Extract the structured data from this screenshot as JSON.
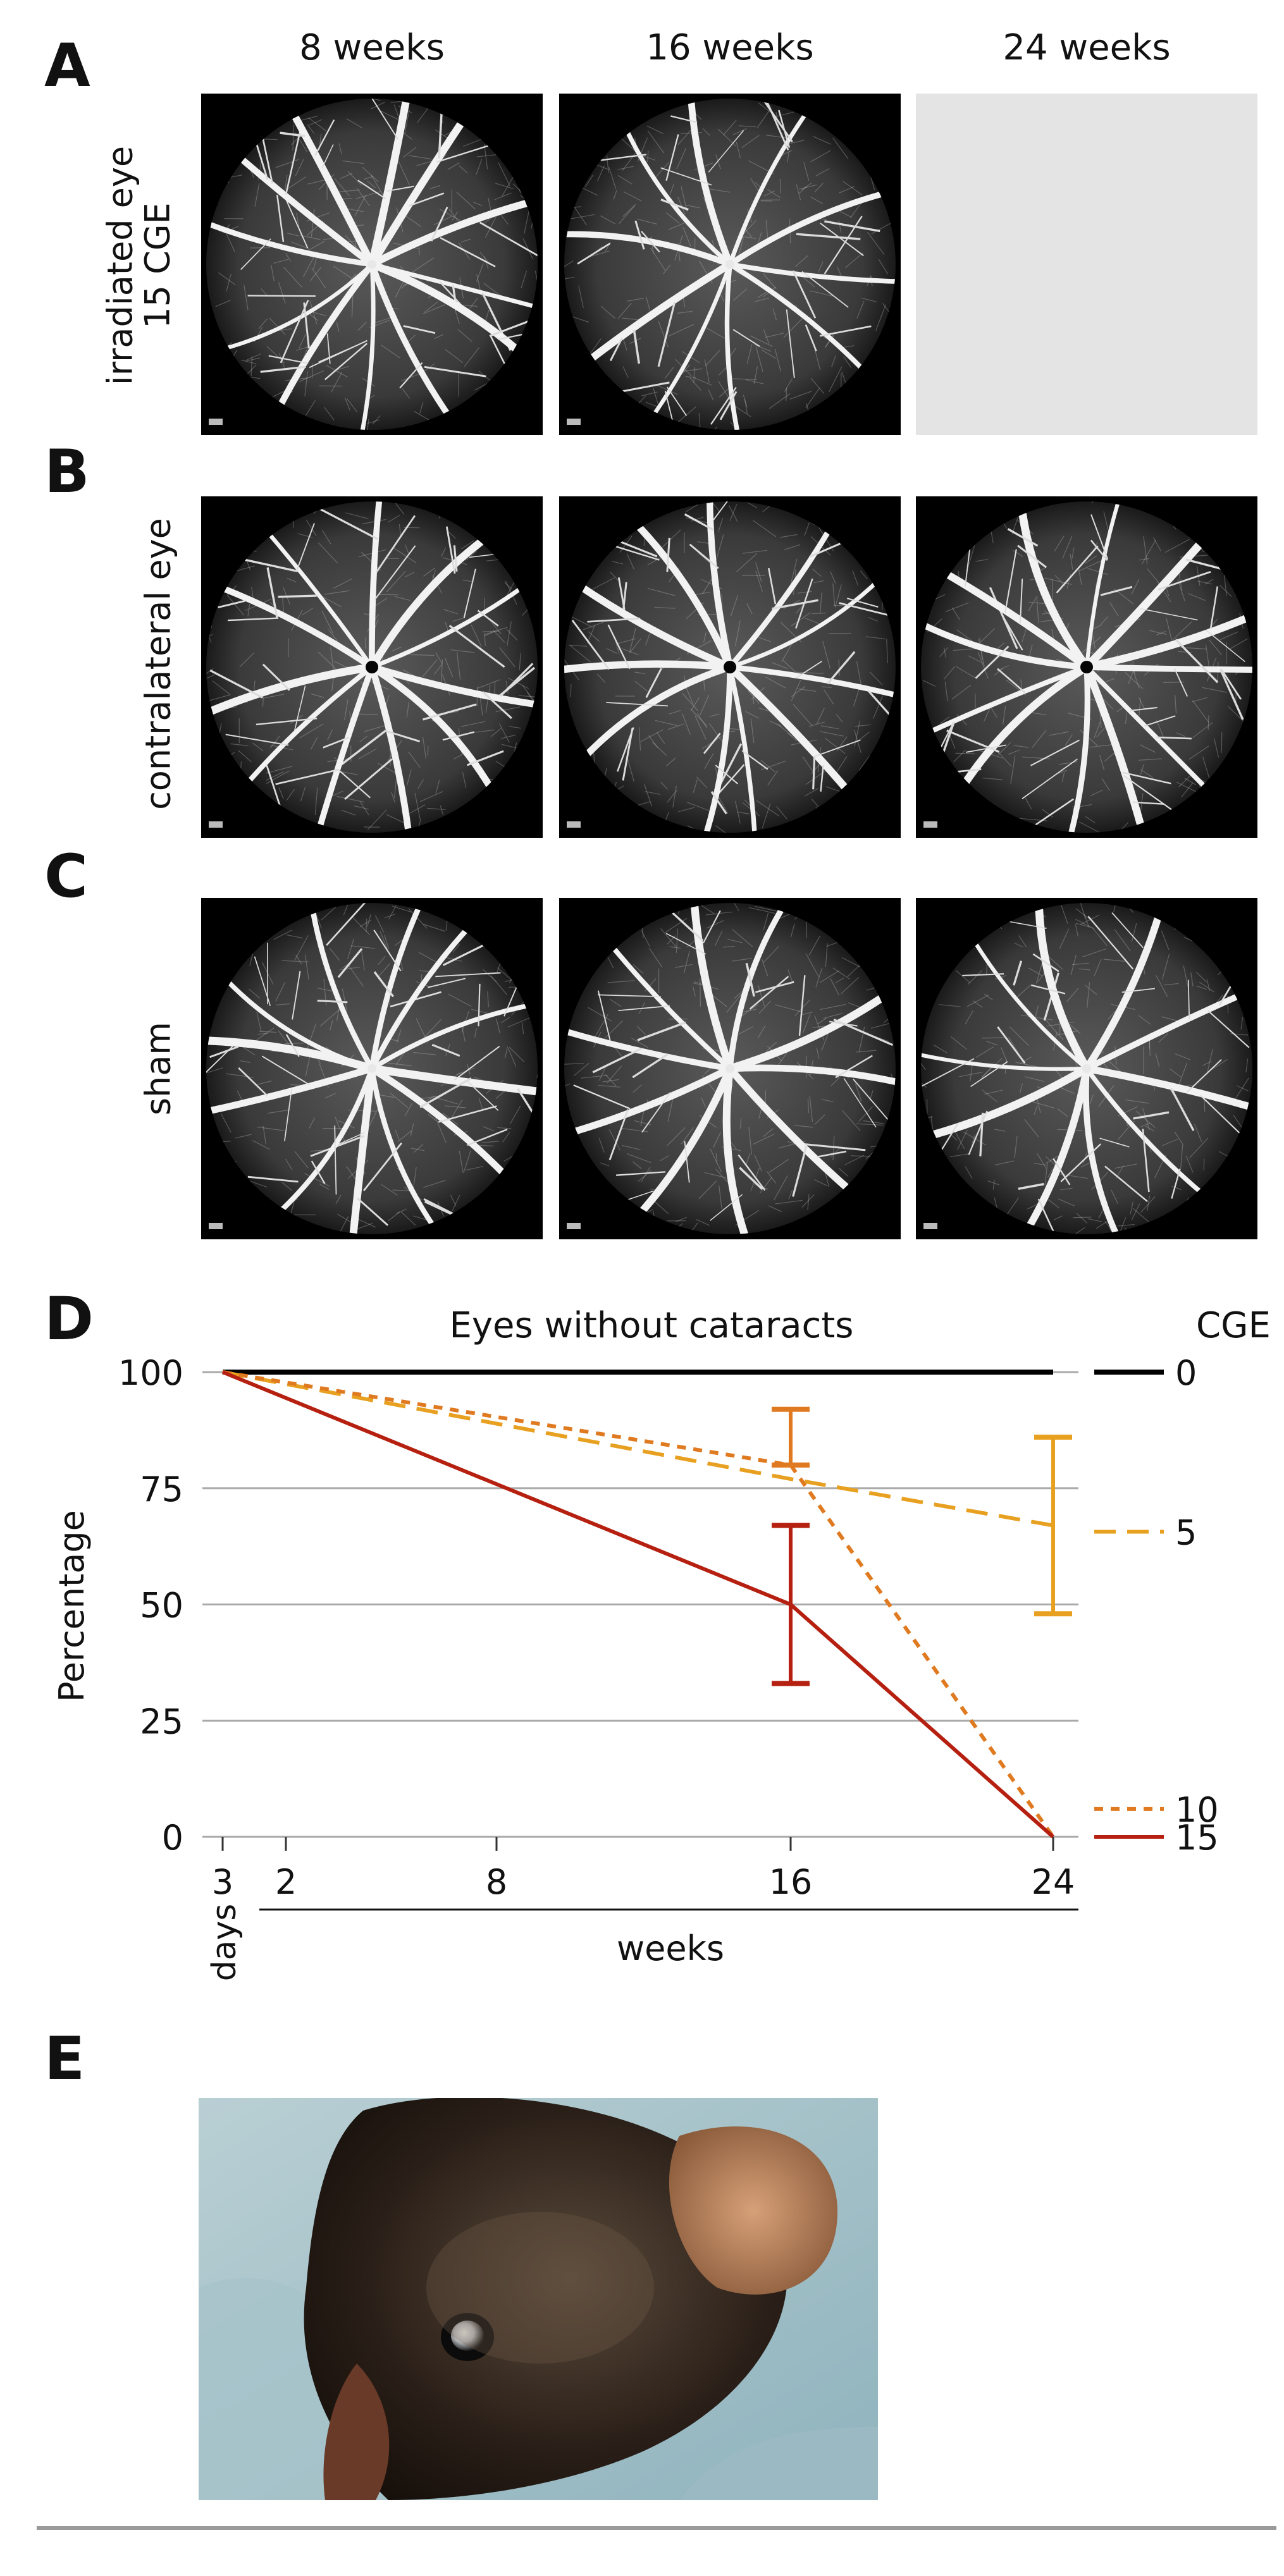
{
  "panels": {
    "a": "A",
    "b": "B",
    "c": "C",
    "d": "D",
    "e": "E"
  },
  "column_headers": [
    "8 weeks",
    "16 weeks",
    "24 weeks"
  ],
  "row_labels": {
    "a_line1": "irradiated eye",
    "a_line2": "15 CGE",
    "b": "contralateral eye",
    "c": "sham"
  },
  "colors": {
    "cge_0": "#000000",
    "cge_5": "#e8a020",
    "cge_10": "#e07a20",
    "cge_15": "#b52010",
    "gridline": "#aaaaaa",
    "blank_tile": "#e4e4e4"
  },
  "chart_data": {
    "type": "line",
    "title": "Eyes without cataracts",
    "ylabel": "Percentage",
    "xlabel": "weeks",
    "x_sub_label": "days",
    "x_ticks": [
      {
        "label": "3",
        "unit": "days"
      },
      {
        "label": "2",
        "unit": "weeks"
      },
      {
        "label": "8",
        "unit": "weeks"
      },
      {
        "label": "16",
        "unit": "weeks"
      },
      {
        "label": "24",
        "unit": "weeks"
      }
    ],
    "y_ticks": [
      "100",
      "75",
      "50",
      "25",
      "0"
    ],
    "ylim": [
      0,
      100
    ],
    "grid": true,
    "legend_title": "CGE",
    "legend_placement": "right",
    "series": [
      {
        "name": "0",
        "style": "solid",
        "color": "#000000",
        "points": [
          [
            "3 days",
            100
          ],
          [
            "24 weeks",
            100
          ]
        ]
      },
      {
        "name": "5",
        "style": "dashed",
        "color": "#e8a020",
        "points": [
          [
            "3 days",
            100
          ],
          [
            "16 weeks",
            77
          ],
          [
            "24 weeks",
            67
          ]
        ],
        "error_bars": [
          {
            "x": "24 weeks",
            "low": 48,
            "high": 86
          }
        ]
      },
      {
        "name": "10",
        "style": "dotted",
        "color": "#e07a20",
        "points": [
          [
            "3 days",
            100
          ],
          [
            "16 weeks",
            80
          ],
          [
            "24 weeks",
            0
          ]
        ],
        "error_bars": [
          {
            "x": "16 weeks",
            "low": 80,
            "high": 92
          }
        ]
      },
      {
        "name": "15",
        "style": "solid",
        "color": "#b52010",
        "points": [
          [
            "3 days",
            100
          ],
          [
            "16 weeks",
            50
          ],
          [
            "24 weeks",
            0
          ]
        ],
        "error_bars": [
          {
            "x": "16 weeks",
            "low": 33,
            "high": 67
          }
        ]
      }
    ]
  }
}
